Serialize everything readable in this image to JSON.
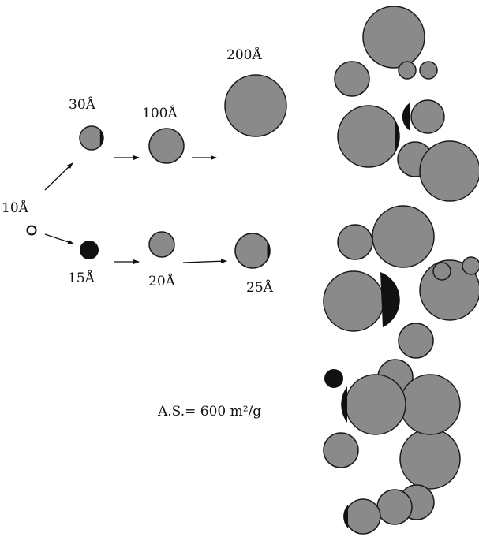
{
  "colors": {
    "particle_fill": "#8a8a8a",
    "particle_stroke": "#1a1a1a",
    "dense_particle": "#111111",
    "seed_particle": "#ffffff"
  },
  "labels": {
    "seed": "10Å",
    "upper_1": "30Å",
    "upper_2": "100Å",
    "upper_3": "200Å",
    "lower_1": "15Å",
    "lower_2": "20Å",
    "lower_3": "25Å",
    "surface_area": "A.S.= 600 m²/g"
  }
}
